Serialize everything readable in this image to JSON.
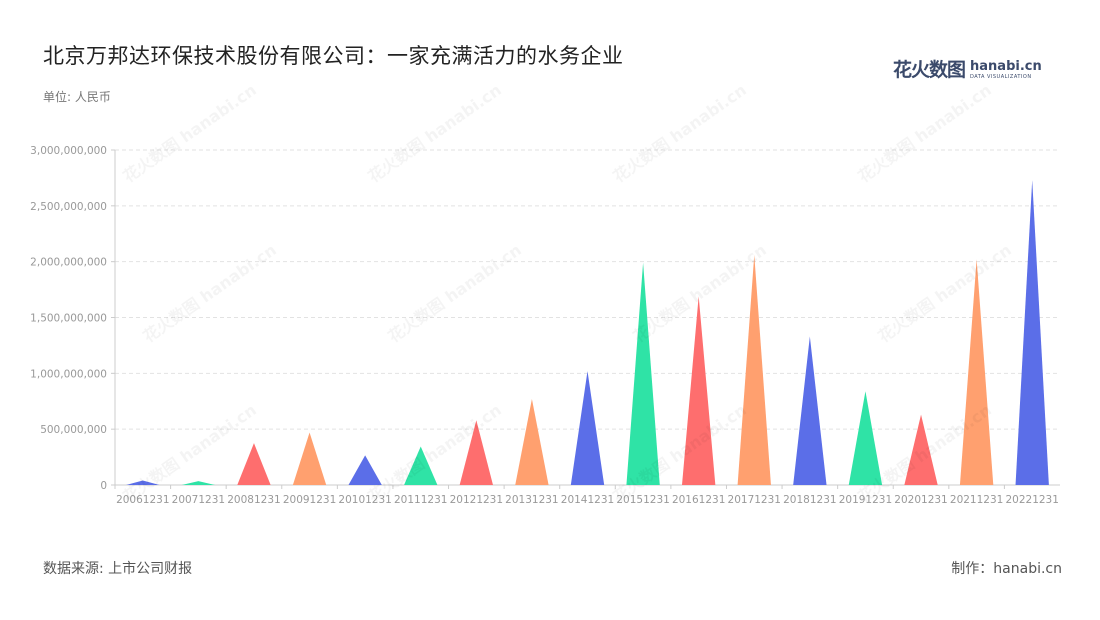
{
  "header": {
    "title": "北京万邦达环保技术股份有限公司：一家充满活力的水务企业",
    "unit": "单位: 人民币"
  },
  "logo": {
    "cn": "花火数图",
    "en": "hanabi.cn",
    "sub": "DATA VISUALIZATION"
  },
  "footer": {
    "source": "数据来源: 上市公司财报",
    "credit": "制作：hanabi.cn"
  },
  "watermark": "花火数图 hanabi.cn",
  "chart_data": {
    "type": "bar",
    "mark": "triangle",
    "title": "北京万邦达环保技术股份有限公司：一家充满活力的水务企业",
    "ylabel": "单位: 人民币",
    "ylim": [
      0,
      3000000000
    ],
    "yticks": [
      0,
      500000000,
      1000000000,
      1500000000,
      2000000000,
      2500000000,
      3000000000
    ],
    "ytick_labels": [
      "0",
      "500,000,000",
      "1,000,000,000",
      "1,500,000,000",
      "2,000,000,000",
      "2,500,000,000",
      "3,000,000,000"
    ],
    "grid": true,
    "categories": [
      "20061231",
      "20071231",
      "20081231",
      "20091231",
      "20101231",
      "20111231",
      "20121231",
      "20131231",
      "20141231",
      "20151231",
      "20161231",
      "20171231",
      "20181231",
      "20191231",
      "20201231",
      "20211231",
      "20221231"
    ],
    "values": [
      40000000,
      35000000,
      375000000,
      470000000,
      265000000,
      345000000,
      580000000,
      770000000,
      1020000000,
      1990000000,
      1690000000,
      2060000000,
      1330000000,
      840000000,
      630000000,
      2020000000,
      2730000000
    ],
    "colors": [
      "#5b6ee8",
      "#2fe3a6",
      "#fe6e6e",
      "#ffa06f"
    ]
  }
}
